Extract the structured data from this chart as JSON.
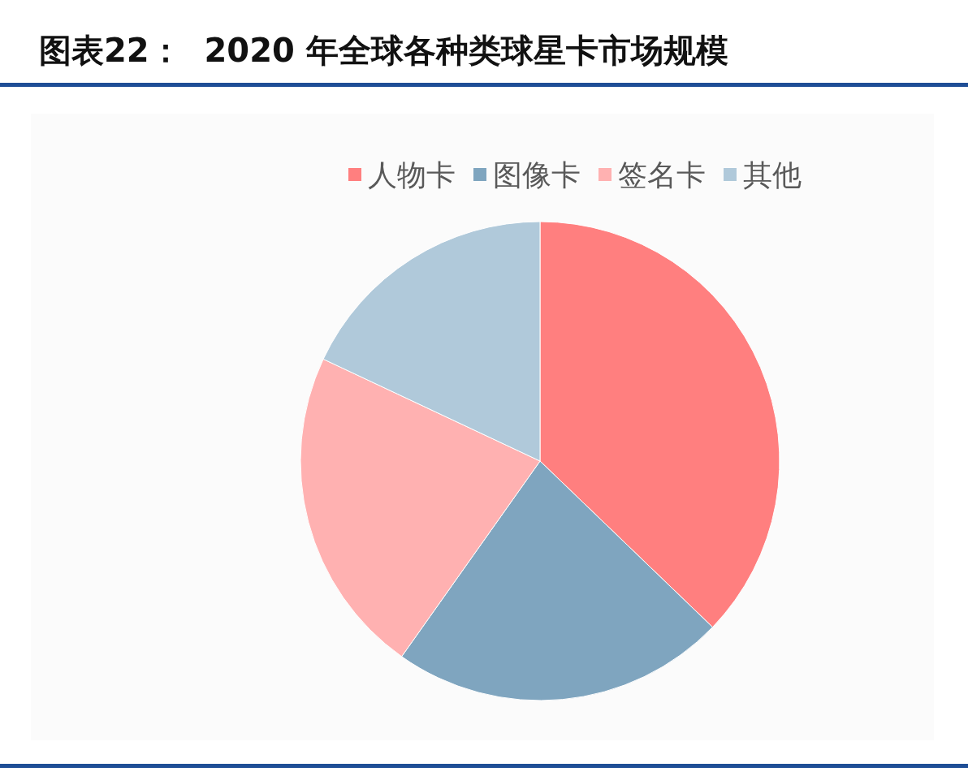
{
  "chart_data": {
    "type": "pie",
    "title": "图表22：  2020 年全球各种类球星卡市场规模",
    "categories": [
      "人物卡",
      "图像卡",
      "签名卡",
      "其他"
    ],
    "values": [
      37.2,
      22.6,
      22.2,
      18.0
    ],
    "colors": [
      "#ff7f7f",
      "#7fa5bf",
      "#ffb1b1",
      "#b0c9da"
    ],
    "legend": "top"
  }
}
